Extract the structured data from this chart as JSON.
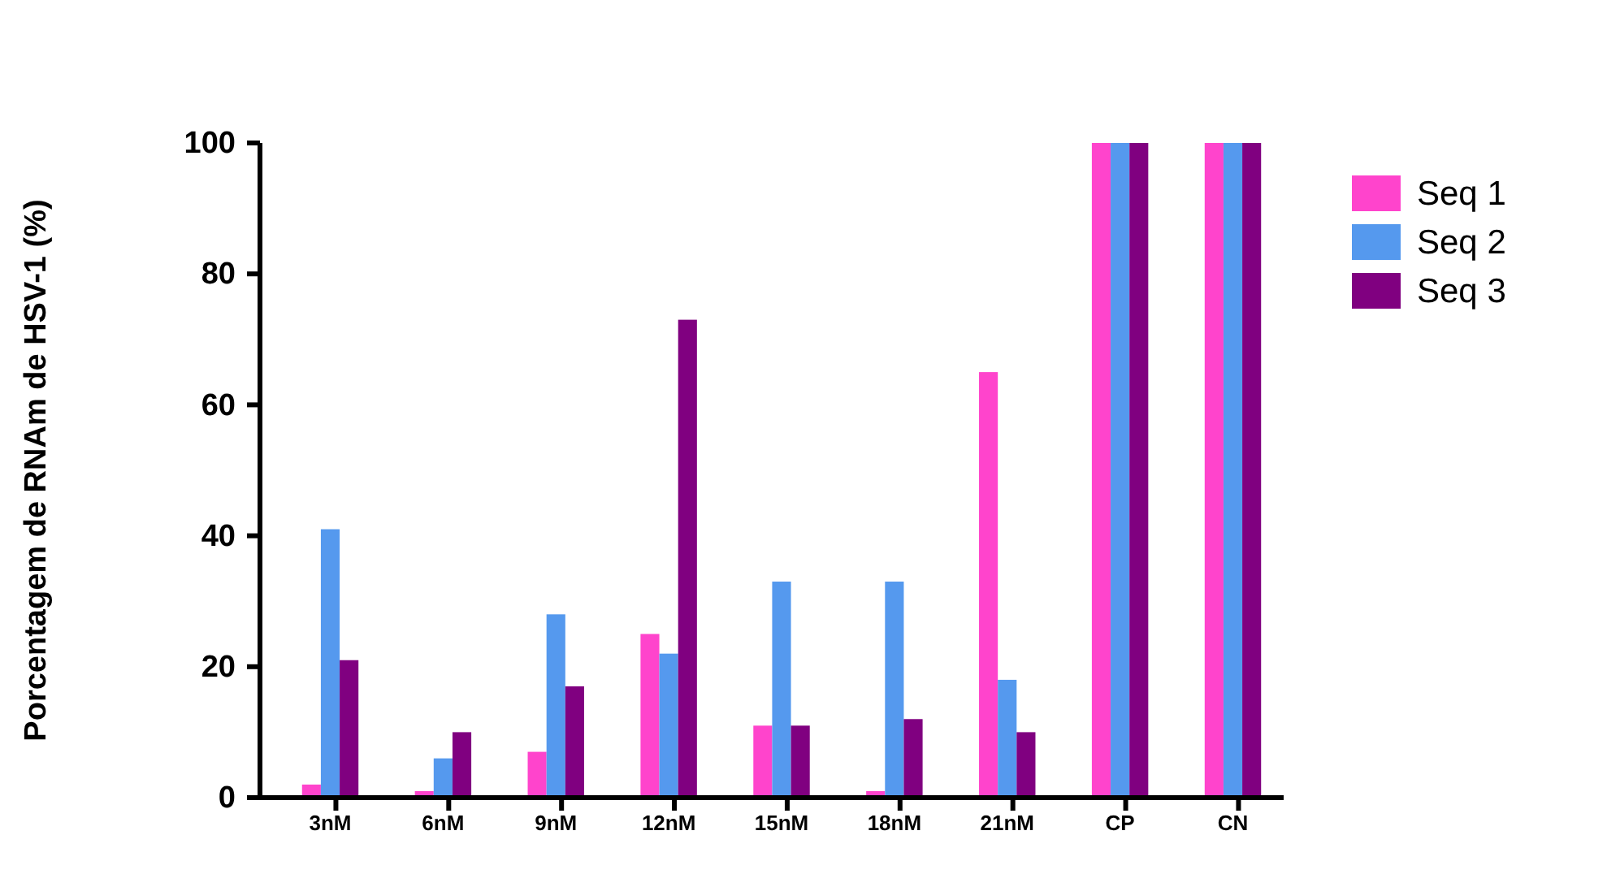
{
  "chart_data": {
    "type": "bar",
    "ylabel": "Porcentagem de RNAm de HSV-1 (%)",
    "categories": [
      "3nM",
      "6nM",
      "9nM",
      "12nM",
      "15nM",
      "18nM",
      "21nM",
      "CP",
      "CN"
    ],
    "series": [
      {
        "name": "Seq 1",
        "color": "#ff44cc",
        "values": [
          2,
          1,
          7,
          25,
          11,
          1,
          65,
          100,
          100
        ]
      },
      {
        "name": "Seq 2",
        "color": "#5599ee",
        "values": [
          41,
          6,
          28,
          22,
          33,
          33,
          18,
          100,
          100
        ]
      },
      {
        "name": "Seq 3",
        "color": "#800080",
        "values": [
          21,
          10,
          17,
          73,
          11,
          12,
          10,
          100,
          100
        ]
      }
    ],
    "ylim": [
      0,
      100
    ],
    "yticks": [
      0,
      20,
      40,
      60,
      80,
      100
    ],
    "legend": "top right"
  }
}
